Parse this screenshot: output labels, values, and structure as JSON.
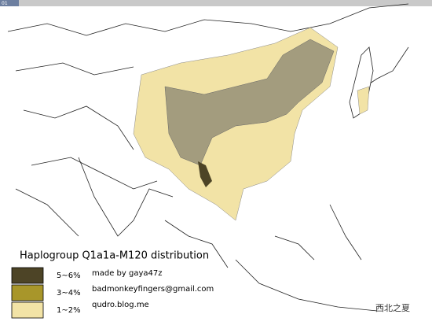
{
  "corner_tag": "01",
  "map": {
    "title": "Haplogroup Q1a1a-M120 distribution",
    "legend": [
      {
        "label": "5~6%",
        "color": "#4d4426"
      },
      {
        "label": "3~4%",
        "color": "#a8962a"
      },
      {
        "label": "1~2%",
        "color": "#f2e3a6"
      }
    ],
    "credits": [
      "made by gaya47z",
      "badmonkeyfingers@gmail.com",
      "qudro.blog.me"
    ],
    "watermark": "西北之夏"
  }
}
